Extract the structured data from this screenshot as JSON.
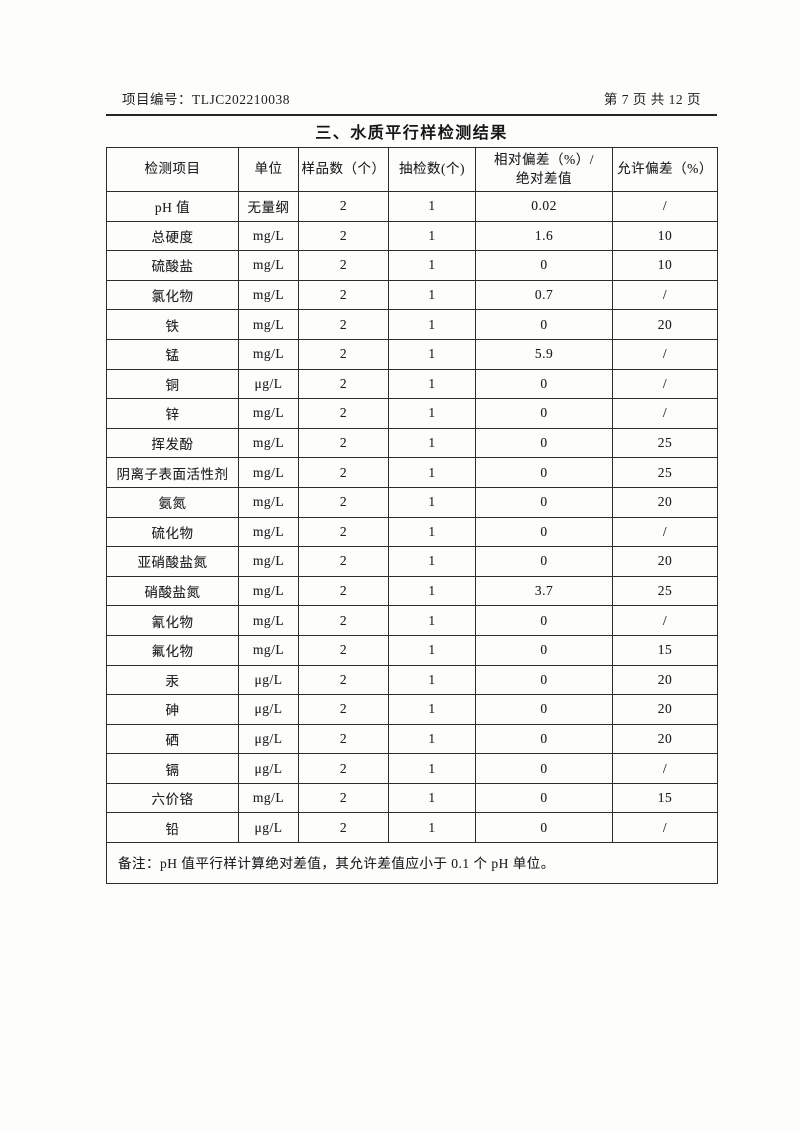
{
  "header": {
    "project_number": "项目编号：TLJC202210038",
    "page_indicator": "第 7 页 共 12 页"
  },
  "title": "三、水质平行样检测结果",
  "table": {
    "headers": {
      "item": "检测项目",
      "unit": "单位",
      "sample_count": "样品数（个）",
      "spot_check_count": "抽检数(个)",
      "relative_deviation_line1": "相对偏差（%）/",
      "relative_deviation_line2": "绝对差值",
      "allowed_deviation": "允许偏差（%）"
    },
    "rows": [
      [
        "pH 值",
        "无量纲",
        "2",
        "1",
        "0.02",
        "/"
      ],
      [
        "总硬度",
        "mg/L",
        "2",
        "1",
        "1.6",
        "10"
      ],
      [
        "硫酸盐",
        "mg/L",
        "2",
        "1",
        "0",
        "10"
      ],
      [
        "氯化物",
        "mg/L",
        "2",
        "1",
        "0.7",
        "/"
      ],
      [
        "铁",
        "mg/L",
        "2",
        "1",
        "0",
        "20"
      ],
      [
        "锰",
        "mg/L",
        "2",
        "1",
        "5.9",
        "/"
      ],
      [
        "铜",
        "μg/L",
        "2",
        "1",
        "0",
        "/"
      ],
      [
        "锌",
        "mg/L",
        "2",
        "1",
        "0",
        "/"
      ],
      [
        "挥发酚",
        "mg/L",
        "2",
        "1",
        "0",
        "25"
      ],
      [
        "阴离子表面活性剂",
        "mg/L",
        "2",
        "1",
        "0",
        "25"
      ],
      [
        "氨氮",
        "mg/L",
        "2",
        "1",
        "0",
        "20"
      ],
      [
        "硫化物",
        "mg/L",
        "2",
        "1",
        "0",
        "/"
      ],
      [
        "亚硝酸盐氮",
        "mg/L",
        "2",
        "1",
        "0",
        "20"
      ],
      [
        "硝酸盐氮",
        "mg/L",
        "2",
        "1",
        "3.7",
        "25"
      ],
      [
        "氰化物",
        "mg/L",
        "2",
        "1",
        "0",
        "/"
      ],
      [
        "氟化物",
        "mg/L",
        "2",
        "1",
        "0",
        "15"
      ],
      [
        "汞",
        "μg/L",
        "2",
        "1",
        "0",
        "20"
      ],
      [
        "砷",
        "μg/L",
        "2",
        "1",
        "0",
        "20"
      ],
      [
        "硒",
        "μg/L",
        "2",
        "1",
        "0",
        "20"
      ],
      [
        "镉",
        "μg/L",
        "2",
        "1",
        "0",
        "/"
      ],
      [
        "六价铬",
        "mg/L",
        "2",
        "1",
        "0",
        "15"
      ],
      [
        "铅",
        "μg/L",
        "2",
        "1",
        "0",
        "/"
      ]
    ],
    "note": "备注：pH 值平行样计算绝对差值，其允许差值应小于 0.1 个 pH 单位。"
  }
}
